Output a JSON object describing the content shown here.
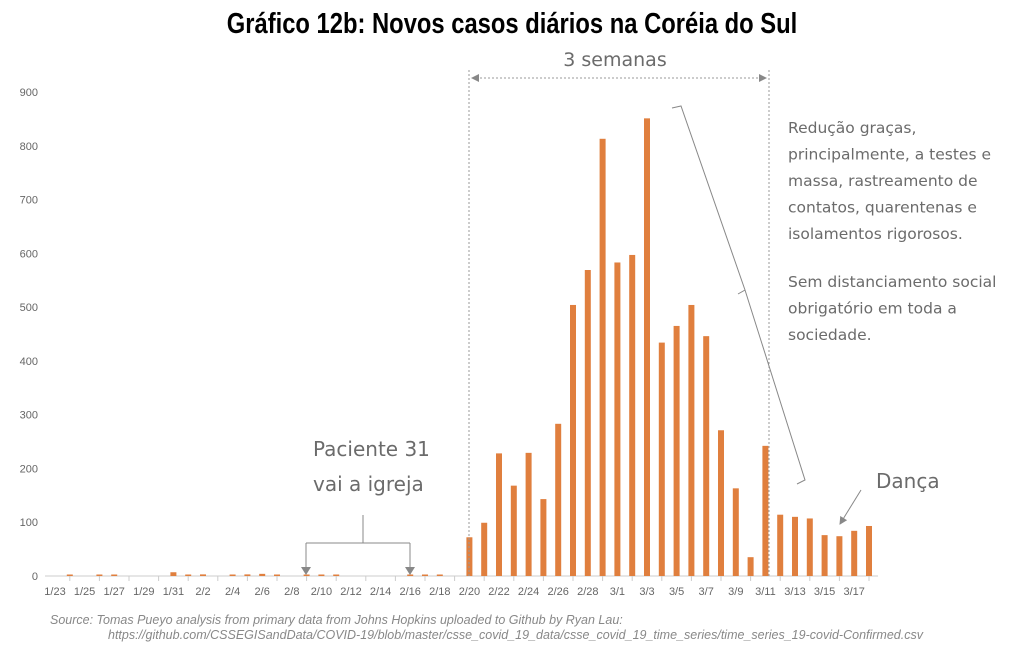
{
  "chart_data": {
    "type": "bar",
    "title": "Gráfico 12b: Novos casos diários na Coréia do Sul",
    "xlabel": "",
    "ylabel": "",
    "ylim": [
      0,
      900
    ],
    "yticks": [
      "0",
      "100",
      "200",
      "300",
      "400",
      "500",
      "600",
      "700",
      "800",
      "900"
    ],
    "grid": false,
    "color": "#E07F3E",
    "categories": [
      "1/23",
      "1/24",
      "1/25",
      "1/26",
      "1/27",
      "1/28",
      "1/29",
      "1/30",
      "1/31",
      "2/1",
      "2/2",
      "2/3",
      "2/4",
      "2/5",
      "2/6",
      "2/7",
      "2/8",
      "2/9",
      "2/10",
      "2/11",
      "2/12",
      "2/13",
      "2/14",
      "2/15",
      "2/16",
      "2/17",
      "2/18",
      "2/19",
      "2/20",
      "2/21",
      "2/22",
      "2/23",
      "2/24",
      "2/25",
      "2/26",
      "2/27",
      "2/28",
      "2/29",
      "3/1",
      "3/2",
      "3/3",
      "3/4",
      "3/5",
      "3/6",
      "3/7",
      "3/8",
      "3/9",
      "3/10",
      "3/11",
      "3/12",
      "3/13",
      "3/14",
      "3/15",
      "3/16",
      "3/17",
      "3/18"
    ],
    "values": [
      0,
      1,
      0,
      1,
      1,
      0,
      0,
      0,
      7,
      1,
      3,
      0,
      1,
      3,
      4,
      1,
      0,
      1,
      1,
      1,
      0,
      0,
      0,
      0,
      1,
      1,
      1,
      0,
      72,
      99,
      228,
      168,
      229,
      143,
      283,
      504,
      569,
      813,
      583,
      597,
      851,
      434,
      465,
      504,
      446,
      271,
      163,
      35,
      242,
      114,
      110,
      107,
      76,
      74,
      84,
      93
    ],
    "xtick_labels": [
      "1/23",
      "1/25",
      "1/27",
      "1/29",
      "1/31",
      "2/2",
      "2/4",
      "2/6",
      "2/8",
      "2/10",
      "2/12",
      "2/14",
      "2/16",
      "2/18",
      "2/20",
      "2/22",
      "2/24",
      "2/26",
      "2/28",
      "3/1",
      "3/3",
      "3/5",
      "3/7",
      "3/9",
      "3/11",
      "3/13",
      "3/15",
      "3/17"
    ],
    "annotations": {
      "span_label": "3 semanas",
      "reduction_lines": [
        "Redução graças,",
        "principalmente, a testes e",
        "massa, rastreamento de",
        "contatos, quarentenas e",
        "isolamentos rigorosos."
      ],
      "no_distancing_lines": [
        "Sem distanciamento social",
        "obrigatório em toda a",
        "sociedade."
      ],
      "patient_lines": [
        "Paciente 31",
        "vai a igreja"
      ],
      "dance": "Dança"
    },
    "source_lines": [
      "Source: Tomas Pueyo analysis from primary data from Johns Hopkins uploaded to Github by Ryan Lau:",
      "https://github.com/CSSEGISandData/COVID-19/blob/master/csse_covid_19_data/csse_covid_19_time_series/time_series_19-covid-Confirmed.csv"
    ]
  }
}
